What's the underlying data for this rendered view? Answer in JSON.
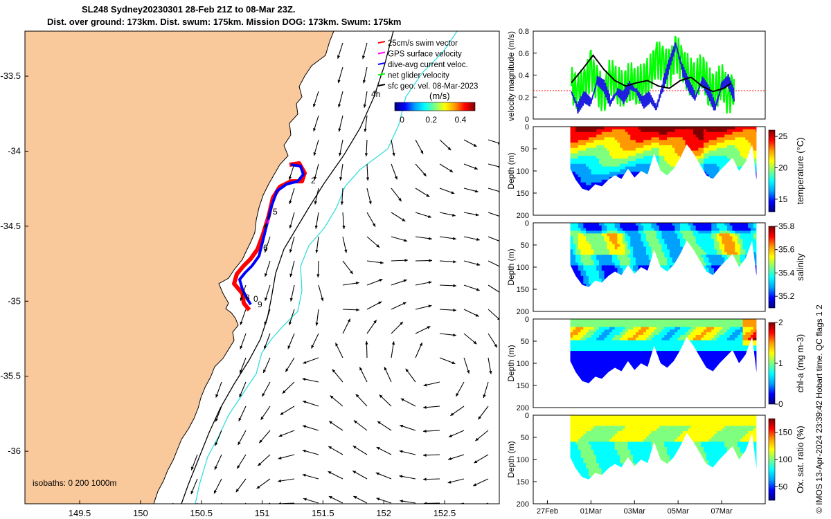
{
  "header": {
    "title_line1": "SL248 Sydney20230301 28-Feb 21Z to 08-Mar 23Z.",
    "title_line2": "Dist. over ground: 173km. Dist. swum: 175km. Mission DOG: 173km. Swum: 175km"
  },
  "side_text": {
    "credit": "© IMOS 13-Apr-2024 23:39:42 Hobart time. QC flags 1  2"
  },
  "colors": {
    "land": "#f9c89b",
    "glider_red": "#ff0000",
    "glider_blue": "#0000ff",
    "velocity_blue": "#1f1fe0",
    "velocity_green": "#00ff00",
    "velocity_black": "#000000",
    "isobath_200": "#000000",
    "isobath_1000": "#33dddd"
  },
  "chart_data": [
    {
      "type": "scatter",
      "id": "map",
      "x_ticks": [
        "149.5",
        "150",
        "150.5",
        "151",
        "151.5",
        "152",
        "152.5"
      ],
      "y_ticks": [
        "-33.5",
        "-34",
        "-34.5",
        "-35",
        "-35.5",
        "-36"
      ],
      "xlim": [
        149.05,
        152.95
      ],
      "ylim": [
        -36.35,
        -33.2
      ],
      "legend": [
        {
          "label": "25cm/s swim vector",
          "color": "#ff0000"
        },
        {
          "label": "GPS surface velocity",
          "color": "#ff00ff"
        },
        {
          "label": "dive-avg current veloc.",
          "color": "#0000ff"
        },
        {
          "label": "net glider velocity",
          "color": "#00ff00"
        },
        {
          "label": "sfc geo. vel. 08-Mar-2023",
          "color": "#000000"
        }
      ],
      "colorbar": {
        "label": "(m/s)",
        "ticks": [
          "0",
          "0.2",
          "0.4"
        ],
        "range": [
          -0.05,
          0.5
        ]
      },
      "scale_label": "4h",
      "isobath_label": "isobaths: 0   200  1000m",
      "day_labels": [
        "2",
        "5",
        "6",
        "8",
        "0",
        "9"
      ]
    },
    {
      "type": "line",
      "id": "velocity",
      "ylabel": "velocity magnitude (m/s)",
      "y_ticks": [
        "0",
        "0.2",
        "0.4",
        "0.6",
        "0.8"
      ],
      "ylim": [
        0,
        0.8
      ],
      "series": [
        {
          "color": "#00ff00",
          "x": [
            1.0,
            1.3,
            1.6,
            1.9,
            2.2,
            2.5,
            2.8,
            3.1,
            3.4,
            3.7,
            4.0,
            4.3,
            4.6,
            4.9,
            5.2,
            5.5,
            5.8,
            6.1,
            6.4,
            6.7,
            7.0,
            7.3,
            7.6,
            7.9,
            8.2,
            8.5
          ],
          "values": [
            0.3,
            0.25,
            0.3,
            0.45,
            0.3,
            0.2,
            0.4,
            0.3,
            0.28,
            0.35,
            0.3,
            0.35,
            0.4,
            0.55,
            0.5,
            0.45,
            0.6,
            0.5,
            0.4,
            0.35,
            0.45,
            0.3,
            0.25,
            0.35,
            0.2,
            0.3
          ]
        },
        {
          "color": "#1f1fe0",
          "x": [
            1.0,
            1.3,
            1.6,
            1.9,
            2.2,
            2.5,
            2.8,
            3.1,
            3.4,
            3.7,
            4.0,
            4.3,
            4.6,
            4.9,
            5.2,
            5.5,
            5.8,
            6.1,
            6.4,
            6.7,
            7.0,
            7.3,
            7.6,
            7.9,
            8.2,
            8.5
          ],
          "values": [
            0.25,
            0.1,
            0.2,
            0.15,
            0.35,
            0.3,
            0.15,
            0.25,
            0.2,
            0.3,
            0.25,
            0.15,
            0.2,
            0.1,
            0.3,
            0.5,
            0.68,
            0.45,
            0.3,
            0.2,
            0.35,
            0.25,
            0.1,
            0.3,
            0.35,
            0.2
          ]
        },
        {
          "color": "#000000",
          "x": [
            1.0,
            1.5,
            2.0,
            2.5,
            3.0,
            3.5,
            4.0,
            4.5,
            5.0,
            5.5,
            6.0,
            6.5,
            7.0,
            7.5,
            8.0,
            8.5
          ],
          "values": [
            0.33,
            0.45,
            0.58,
            0.45,
            0.35,
            0.3,
            0.33,
            0.35,
            0.3,
            0.28,
            0.35,
            0.38,
            0.3,
            0.25,
            0.28,
            0.35
          ]
        }
      ]
    },
    {
      "type": "heatmap",
      "id": "temperature",
      "ylabel": "Depth (m)",
      "clabel": "temperature (°C)",
      "y_ticks": [
        "0",
        "50",
        "100",
        "150",
        "200"
      ],
      "ylim": [
        0,
        200
      ],
      "c_ticks": [
        "15",
        "20",
        "25"
      ],
      "crange": [
        13,
        26
      ],
      "palette": [
        "#00007f",
        "#0000ff",
        "#00a0ff",
        "#00ffff",
        "#7fff7f",
        "#ffff00",
        "#ff9900",
        "#ff0000",
        "#7f0000"
      ]
    },
    {
      "type": "heatmap",
      "id": "salinity",
      "ylabel": "Depth (m)",
      "clabel": "salinity",
      "y_ticks": [
        "0",
        "50",
        "100",
        "150",
        "200"
      ],
      "ylim": [
        0,
        200
      ],
      "c_ticks": [
        "35.2",
        "35.4",
        "35.6",
        "35.8"
      ],
      "crange": [
        35.1,
        35.8
      ],
      "palette": [
        "#00007f",
        "#0000ff",
        "#00a0ff",
        "#00ffff",
        "#7fff7f",
        "#ffff00",
        "#ff9900",
        "#ff0000",
        "#7f0000"
      ]
    },
    {
      "type": "heatmap",
      "id": "chla",
      "ylabel": "Depth (m)",
      "clabel": "chl-a (mg m-3)",
      "y_ticks": [
        "0",
        "50",
        "100",
        "150",
        "200"
      ],
      "ylim": [
        0,
        200
      ],
      "c_ticks": [
        "0",
        "1",
        "2"
      ],
      "crange": [
        0,
        2
      ],
      "palette": [
        "#00007f",
        "#0000ff",
        "#00a0ff",
        "#00ffff",
        "#7fff7f",
        "#ffff00",
        "#ff9900",
        "#ff0000",
        "#7f0000"
      ]
    },
    {
      "type": "heatmap",
      "id": "oxygen",
      "ylabel": "Depth (m)",
      "clabel": "Ox. sat. ratio (%)",
      "y_ticks": [
        "0",
        "50",
        "100",
        "150",
        "200"
      ],
      "ylim": [
        0,
        200
      ],
      "c_ticks": [
        "50",
        "100",
        "150"
      ],
      "crange": [
        25,
        175
      ],
      "palette": [
        "#00007f",
        "#0000ff",
        "#00a0ff",
        "#00ffff",
        "#7fff7f",
        "#ffff00",
        "#ff9900",
        "#ff0000",
        "#7f0000"
      ],
      "x_ticks": [
        "27Feb",
        "01Mar",
        "03Mar",
        "05Mar",
        "07Mar"
      ]
    }
  ]
}
